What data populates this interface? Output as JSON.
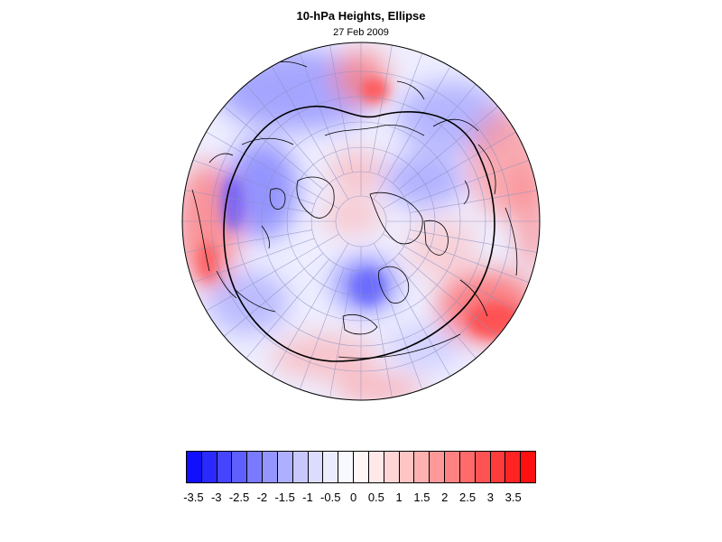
{
  "title": "10-hPa Heights, Ellipse",
  "subtitle": "27 Feb 2009",
  "colorbar": {
    "labels": [
      "-3.5",
      "-3",
      "-2.5",
      "-2",
      "-1.5",
      "-1",
      "-0.5",
      "0",
      "0.5",
      "1",
      "1.5",
      "2",
      "2.5",
      "3",
      "3.5"
    ],
    "colors": [
      "#1010ff",
      "#2a2aff",
      "#4545ff",
      "#5f5fff",
      "#7a7aff",
      "#9595ff",
      "#afafff",
      "#c8c8ff",
      "#dcdcff",
      "#ececff",
      "#f8f8ff",
      "#fff6f6",
      "#ffe8e8",
      "#ffd6d6",
      "#ffc4c4",
      "#ffb0b0",
      "#ff9999",
      "#ff8282",
      "#ff6b6b",
      "#ff5353",
      "#ff3b3b",
      "#ff2424",
      "#ff1010"
    ]
  }
}
